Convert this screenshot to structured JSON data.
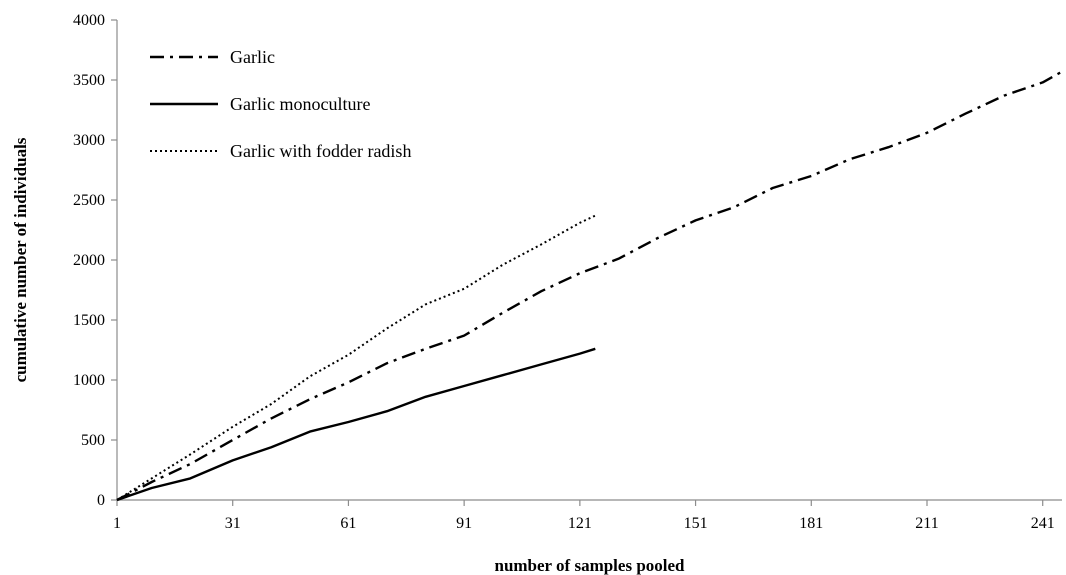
{
  "chart_data": {
    "type": "line",
    "title": "",
    "xlabel": "number of samples pooled",
    "ylabel": "cumulative number of individuals",
    "xlim": [
      1,
      246
    ],
    "ylim": [
      0,
      4000
    ],
    "xticks": [
      1,
      31,
      61,
      91,
      121,
      151,
      181,
      211,
      241
    ],
    "yticks": [
      0,
      500,
      1000,
      1500,
      2000,
      2500,
      3000,
      3500,
      4000
    ],
    "grid": false,
    "legend_position": "top-left",
    "series": [
      {
        "name": "Garlic",
        "style": "dash-dot",
        "color": "#000000",
        "x": [
          1,
          10,
          20,
          31,
          41,
          51,
          61,
          71,
          81,
          91,
          101,
          111,
          121,
          131,
          141,
          151,
          161,
          171,
          181,
          191,
          201,
          211,
          221,
          231,
          241,
          246
        ],
        "y": [
          0,
          150,
          300,
          500,
          680,
          840,
          980,
          1140,
          1260,
          1370,
          1560,
          1740,
          1890,
          2010,
          2180,
          2330,
          2440,
          2600,
          2700,
          2840,
          2940,
          3060,
          3220,
          3370,
          3480,
          3570
        ]
      },
      {
        "name": "Garlic monoculture",
        "style": "solid",
        "color": "#000000",
        "x": [
          1,
          10,
          20,
          31,
          41,
          51,
          61,
          71,
          81,
          91,
          101,
          111,
          121,
          125
        ],
        "y": [
          0,
          100,
          180,
          330,
          440,
          570,
          650,
          740,
          860,
          950,
          1040,
          1130,
          1220,
          1260
        ]
      },
      {
        "name": "Garlic with fodder radish",
        "style": "dotted",
        "color": "#000000",
        "x": [
          1,
          10,
          20,
          31,
          41,
          51,
          61,
          71,
          81,
          91,
          101,
          111,
          121,
          125
        ],
        "y": [
          0,
          180,
          380,
          610,
          800,
          1030,
          1210,
          1430,
          1630,
          1760,
          1960,
          2130,
          2310,
          2370
        ]
      }
    ]
  }
}
